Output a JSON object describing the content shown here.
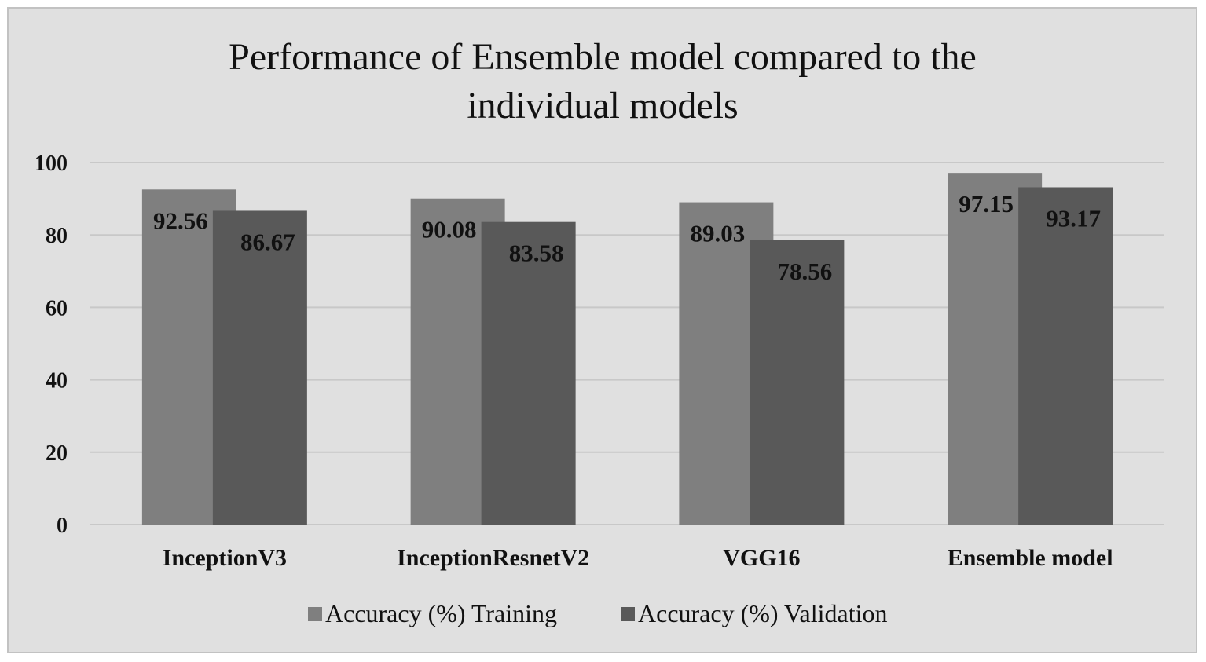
{
  "chart_data": {
    "type": "bar",
    "title": "Performance of Ensemble model compared to the individual models",
    "title_lines": [
      "Performance of Ensemble model compared to the",
      "individual models"
    ],
    "categories": [
      "InceptionV3",
      "InceptionResnetV2",
      "VGG16",
      "Ensemble model"
    ],
    "series": [
      {
        "name": "Accuracy (%) Training",
        "values": [
          92.56,
          90.08,
          89.03,
          97.15
        ],
        "color": "#7f7f7f"
      },
      {
        "name": "Accuracy (%) Validation",
        "values": [
          86.67,
          83.58,
          78.56,
          93.17
        ],
        "color": "#595959"
      }
    ],
    "ylim": [
      0,
      100
    ],
    "yticks": [
      0,
      20,
      40,
      60,
      80,
      100
    ],
    "grid": true,
    "legend_position": "bottom",
    "xlabel": "",
    "ylabel": ""
  },
  "colors": {
    "background": "#e0e0e0",
    "border": "#c2c2c2",
    "gridline": "#c8c8c8"
  }
}
